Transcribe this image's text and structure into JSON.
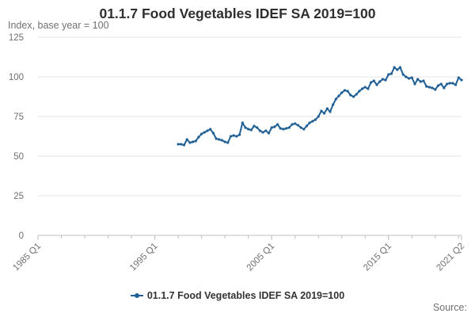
{
  "chart_data": {
    "type": "line",
    "title": "01.1.7 Food Vegetables IDEF SA 2019=100",
    "ylabel": "Index, base year = 100",
    "xlabel": "",
    "x_tick_labels": [
      "1985 Q1",
      "1995 Q1",
      "2005 Q1",
      "2015 Q1",
      "2021 Q2"
    ],
    "y_ticks": [
      0,
      25,
      50,
      75,
      100,
      125
    ],
    "ylim": [
      0,
      125
    ],
    "grid": true,
    "legend_position": "bottom",
    "source_label": "Source:",
    "series": [
      {
        "name": "01.1.7 Food Vegetables IDEF SA 2019=100",
        "color": "#206095",
        "points": [
          [
            "1997 Q1",
            57.5
          ],
          [
            "1997 Q2",
            57.5
          ],
          [
            "1997 Q3",
            57
          ],
          [
            "1997 Q4",
            60.5
          ],
          [
            "1998 Q1",
            58.5
          ],
          [
            "1998 Q2",
            59
          ],
          [
            "1998 Q3",
            59.5
          ],
          [
            "1998 Q4",
            62
          ],
          [
            "1999 Q1",
            64
          ],
          [
            "1999 Q2",
            65
          ],
          [
            "1999 Q3",
            66
          ],
          [
            "1999 Q4",
            67
          ],
          [
            "2000 Q1",
            64.5
          ],
          [
            "2000 Q2",
            61
          ],
          [
            "2000 Q3",
            60.5
          ],
          [
            "2000 Q4",
            60
          ],
          [
            "2001 Q1",
            59
          ],
          [
            "2001 Q2",
            58.5
          ],
          [
            "2001 Q3",
            62.5
          ],
          [
            "2001 Q4",
            63
          ],
          [
            "2002 Q1",
            62.5
          ],
          [
            "2002 Q2",
            63.5
          ],
          [
            "2002 Q3",
            71
          ],
          [
            "2002 Q4",
            68
          ],
          [
            "2003 Q1",
            67
          ],
          [
            "2003 Q2",
            66.5
          ],
          [
            "2003 Q3",
            69
          ],
          [
            "2003 Q4",
            68
          ],
          [
            "2004 Q1",
            66
          ],
          [
            "2004 Q2",
            65
          ],
          [
            "2004 Q3",
            66
          ],
          [
            "2004 Q4",
            64.5
          ],
          [
            "2005 Q1",
            68
          ],
          [
            "2005 Q2",
            68.5
          ],
          [
            "2005 Q3",
            70
          ],
          [
            "2005 Q4",
            67.5
          ],
          [
            "2006 Q1",
            67
          ],
          [
            "2006 Q2",
            67.5
          ],
          [
            "2006 Q3",
            68
          ],
          [
            "2006 Q4",
            70
          ],
          [
            "2007 Q1",
            70.5
          ],
          [
            "2007 Q2",
            69.5
          ],
          [
            "2007 Q3",
            68
          ],
          [
            "2007 Q4",
            67
          ],
          [
            "2008 Q1",
            69
          ],
          [
            "2008 Q2",
            71
          ],
          [
            "2008 Q3",
            72
          ],
          [
            "2008 Q4",
            73
          ],
          [
            "2009 Q1",
            75
          ],
          [
            "2009 Q2",
            78.5
          ],
          [
            "2009 Q3",
            77
          ],
          [
            "2009 Q4",
            80
          ],
          [
            "2010 Q1",
            78
          ],
          [
            "2010 Q2",
            82.5
          ],
          [
            "2010 Q3",
            86
          ],
          [
            "2010 Q4",
            88
          ],
          [
            "2011 Q1",
            90
          ],
          [
            "2011 Q2",
            91.5
          ],
          [
            "2011 Q3",
            91
          ],
          [
            "2011 Q4",
            88.5
          ],
          [
            "2012 Q1",
            87.5
          ],
          [
            "2012 Q2",
            89
          ],
          [
            "2012 Q3",
            91
          ],
          [
            "2012 Q4",
            92.5
          ],
          [
            "2013 Q1",
            93.5
          ],
          [
            "2013 Q2",
            92.5
          ],
          [
            "2013 Q3",
            96.5
          ],
          [
            "2013 Q4",
            97.5
          ],
          [
            "2014 Q1",
            95
          ],
          [
            "2014 Q2",
            97
          ],
          [
            "2014 Q3",
            98.5
          ],
          [
            "2014 Q4",
            98
          ],
          [
            "2015 Q1",
            101.5
          ],
          [
            "2015 Q2",
            102
          ],
          [
            "2015 Q3",
            106
          ],
          [
            "2015 Q4",
            104.5
          ],
          [
            "2016 Q1",
            106
          ],
          [
            "2016 Q2",
            101.5
          ],
          [
            "2016 Q3",
            100
          ],
          [
            "2016 Q4",
            99
          ],
          [
            "2017 Q1",
            99.5
          ],
          [
            "2017 Q2",
            95.5
          ],
          [
            "2017 Q3",
            98.5
          ],
          [
            "2017 Q4",
            97
          ],
          [
            "2018 Q1",
            97.5
          ],
          [
            "2018 Q2",
            94
          ],
          [
            "2018 Q3",
            93.5
          ],
          [
            "2018 Q4",
            93
          ],
          [
            "2019 Q1",
            92
          ],
          [
            "2019 Q2",
            94.5
          ],
          [
            "2019 Q3",
            95.5
          ],
          [
            "2019 Q4",
            93
          ],
          [
            "2020 Q1",
            95.5
          ],
          [
            "2020 Q2",
            96
          ],
          [
            "2020 Q3",
            96
          ],
          [
            "2020 Q4",
            95
          ],
          [
            "2021 Q1",
            99.5
          ],
          [
            "2021 Q2",
            98
          ]
        ]
      }
    ]
  }
}
